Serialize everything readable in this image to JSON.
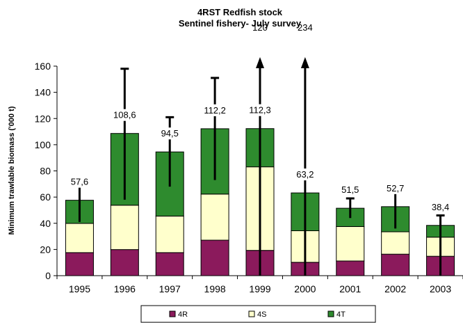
{
  "chart_data": {
    "type": "bar",
    "stacked": true,
    "title": "4RST Redfish stock",
    "subtitle": "Sentinel fishery- July survey",
    "xlabel": "",
    "ylabel": "Minimum trawlable biomass ('000 t)",
    "ylim": [
      0,
      160
    ],
    "yticks": [
      "0",
      "20",
      "40",
      "60",
      "80",
      "100",
      "120",
      "140",
      "160"
    ],
    "categories": [
      "1995",
      "1996",
      "1997",
      "1998",
      "1999",
      "2000",
      "2001",
      "2002",
      "2003"
    ],
    "series": [
      {
        "name": "4R",
        "color": "#8b1a5c",
        "values": [
          17.6,
          19.9,
          17.6,
          27.1,
          19.3,
          10.2,
          11.2,
          16.4,
          14.8
        ]
      },
      {
        "name": "4S",
        "color": "#ffffcc",
        "values": [
          22.3,
          33.9,
          27.9,
          35.2,
          63.8,
          24.1,
          26.3,
          17.1,
          14.6
        ]
      },
      {
        "name": "4T",
        "color": "#2e8b2e",
        "values": [
          17.7,
          54.8,
          49.0,
          49.9,
          29.2,
          28.9,
          14.0,
          19.2,
          9.0
        ]
      }
    ],
    "totals": [
      "57,6",
      "108,6",
      "94,5",
      "112,2",
      "112,3",
      "63,2",
      "51,5",
      "52,7",
      "38,4"
    ],
    "error_bars": [
      {
        "low": 41,
        "high": 73,
        "arrow": false
      },
      {
        "low": 58,
        "high": 158,
        "arrow": false
      },
      {
        "low": 68,
        "high": 121,
        "arrow": false
      },
      {
        "low": 73,
        "high": 151,
        "arrow": false
      },
      {
        "low": 0,
        "high": 120,
        "arrow": true,
        "label": "120"
      },
      {
        "low": 0,
        "high": 234,
        "arrow": true,
        "label": "234"
      },
      {
        "low": 44,
        "high": 59,
        "arrow": false
      },
      {
        "low": 36,
        "high": 69,
        "arrow": false
      },
      {
        "low": 0,
        "high": 46,
        "arrow": false
      }
    ],
    "legend": {
      "position": "bottom",
      "entries": [
        "4R",
        "4S",
        "4T"
      ]
    },
    "grid": false
  }
}
